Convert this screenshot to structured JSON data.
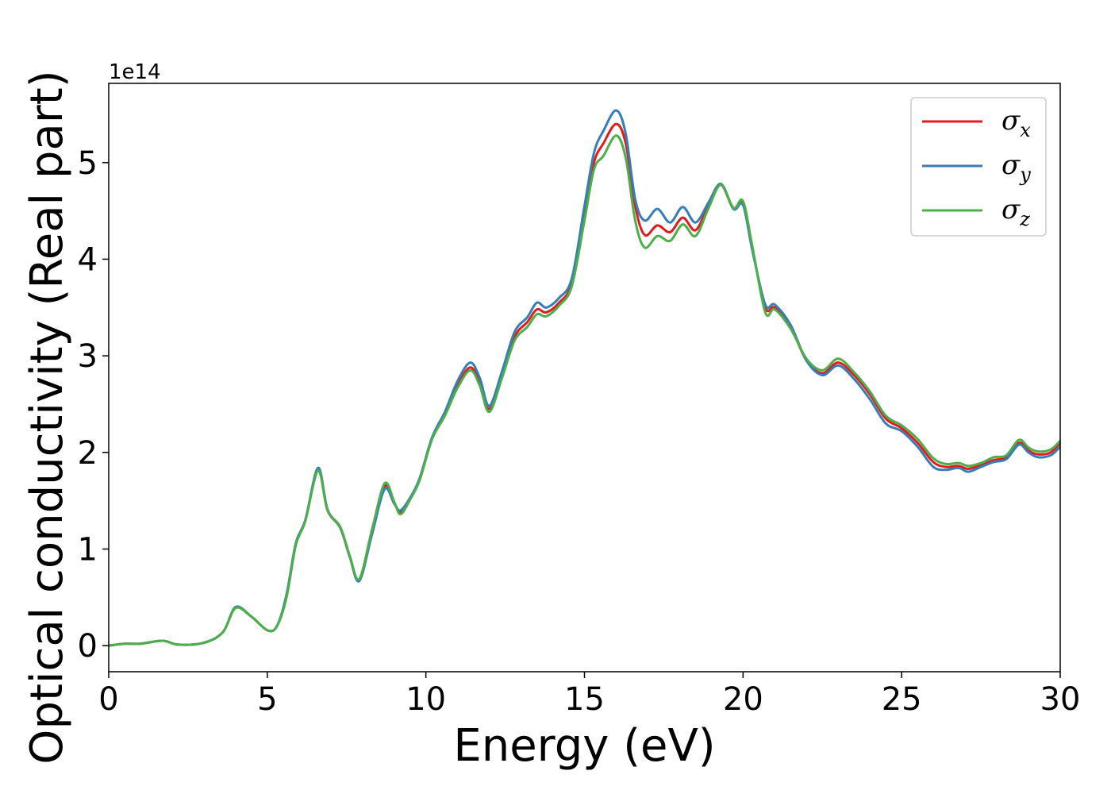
{
  "chart_data": {
    "type": "line",
    "xlabel": "Energy (eV)",
    "ylabel": "Optical conductivity (Real part)",
    "y_offset_label": "1e14",
    "xlim": [
      0,
      30
    ],
    "ylim": [
      -0.27,
      5.82
    ],
    "y_scale_note": "values in units of 1e14",
    "x_ticks": [
      0,
      5,
      10,
      15,
      20,
      25,
      30
    ],
    "x_tick_labels": [
      "0",
      "5",
      "10",
      "15",
      "20",
      "25",
      "30"
    ],
    "y_ticks": [
      0,
      1,
      2,
      3,
      4,
      5
    ],
    "y_tick_labels": [
      "0",
      "1",
      "2",
      "3",
      "4",
      "5"
    ],
    "grid": false,
    "legend_position": "top-right",
    "x": [
      0,
      0.5,
      1.0,
      1.7,
      2.2,
      3.0,
      3.6,
      4.0,
      4.5,
      5.0,
      5.3,
      5.6,
      5.9,
      6.2,
      6.6,
      6.9,
      7.3,
      7.6,
      7.9,
      8.3,
      8.7,
      9.0,
      9.2,
      9.5,
      9.8,
      10.2,
      10.6,
      11.0,
      11.4,
      11.7,
      12.0,
      12.4,
      12.8,
      13.2,
      13.5,
      13.8,
      14.2,
      14.6,
      15.0,
      15.3,
      15.6,
      16.0,
      16.3,
      16.6,
      16.9,
      17.3,
      17.7,
      18.1,
      18.5,
      18.9,
      19.3,
      19.7,
      20.0,
      20.3,
      20.7,
      21.0,
      21.5,
      22.0,
      22.5,
      23.0,
      23.5,
      24.0,
      24.5,
      25.0,
      25.5,
      26.0,
      26.4,
      26.8,
      27.1,
      27.5,
      27.9,
      28.3,
      28.7,
      29.0,
      29.3,
      29.7,
      30.0
    ],
    "series": [
      {
        "name": "σx",
        "legend_main": "σ",
        "legend_sub": "x",
        "color": "#e41a1c",
        "values": [
          0,
          0.02,
          0.02,
          0.05,
          0.01,
          0.03,
          0.14,
          0.39,
          0.3,
          0.16,
          0.2,
          0.5,
          1.05,
          1.3,
          1.82,
          1.4,
          1.22,
          0.92,
          0.68,
          1.18,
          1.65,
          1.48,
          1.38,
          1.52,
          1.72,
          2.15,
          2.4,
          2.7,
          2.88,
          2.72,
          2.45,
          2.8,
          3.2,
          3.35,
          3.48,
          3.45,
          3.55,
          3.75,
          4.45,
          5.0,
          5.2,
          5.4,
          5.2,
          4.55,
          4.25,
          4.35,
          4.28,
          4.43,
          4.3,
          4.55,
          4.77,
          4.52,
          4.58,
          4.1,
          3.5,
          3.5,
          3.3,
          2.95,
          2.82,
          2.93,
          2.8,
          2.6,
          2.35,
          2.25,
          2.1,
          1.9,
          1.85,
          1.86,
          1.83,
          1.87,
          1.92,
          1.95,
          2.1,
          2.02,
          1.98,
          2.0,
          2.1
        ]
      },
      {
        "name": "σy",
        "legend_main": "σ",
        "legend_sub": "y",
        "color": "#377eb8",
        "values": [
          0,
          0.02,
          0.02,
          0.05,
          0.01,
          0.03,
          0.14,
          0.4,
          0.3,
          0.16,
          0.2,
          0.52,
          1.06,
          1.3,
          1.84,
          1.41,
          1.22,
          0.92,
          0.67,
          1.15,
          1.62,
          1.47,
          1.4,
          1.53,
          1.73,
          2.16,
          2.42,
          2.74,
          2.93,
          2.77,
          2.48,
          2.84,
          3.25,
          3.4,
          3.55,
          3.5,
          3.6,
          3.8,
          4.55,
          5.1,
          5.33,
          5.54,
          5.3,
          4.62,
          4.4,
          4.52,
          4.38,
          4.54,
          4.38,
          4.58,
          4.78,
          4.52,
          4.56,
          4.08,
          3.53,
          3.53,
          3.32,
          2.95,
          2.8,
          2.9,
          2.76,
          2.55,
          2.3,
          2.22,
          2.06,
          1.85,
          1.82,
          1.84,
          1.8,
          1.85,
          1.9,
          1.93,
          2.08,
          2.0,
          1.95,
          1.97,
          2.06
        ]
      },
      {
        "name": "σz",
        "legend_main": "σ",
        "legend_sub": "z",
        "color": "#4daf4a",
        "values": [
          0,
          0.02,
          0.02,
          0.05,
          0.01,
          0.03,
          0.14,
          0.39,
          0.3,
          0.16,
          0.2,
          0.49,
          1.04,
          1.29,
          1.81,
          1.4,
          1.23,
          0.93,
          0.69,
          1.2,
          1.68,
          1.49,
          1.36,
          1.51,
          1.71,
          2.14,
          2.38,
          2.67,
          2.85,
          2.69,
          2.42,
          2.77,
          3.16,
          3.3,
          3.43,
          3.41,
          3.52,
          3.72,
          4.4,
          4.93,
          5.07,
          5.28,
          5.05,
          4.4,
          4.12,
          4.24,
          4.19,
          4.36,
          4.24,
          4.52,
          4.77,
          4.53,
          4.6,
          4.12,
          3.45,
          3.48,
          3.28,
          2.97,
          2.85,
          2.97,
          2.83,
          2.63,
          2.38,
          2.28,
          2.14,
          1.94,
          1.88,
          1.89,
          1.86,
          1.89,
          1.95,
          1.97,
          2.13,
          2.05,
          2.01,
          2.03,
          2.12
        ]
      }
    ]
  }
}
